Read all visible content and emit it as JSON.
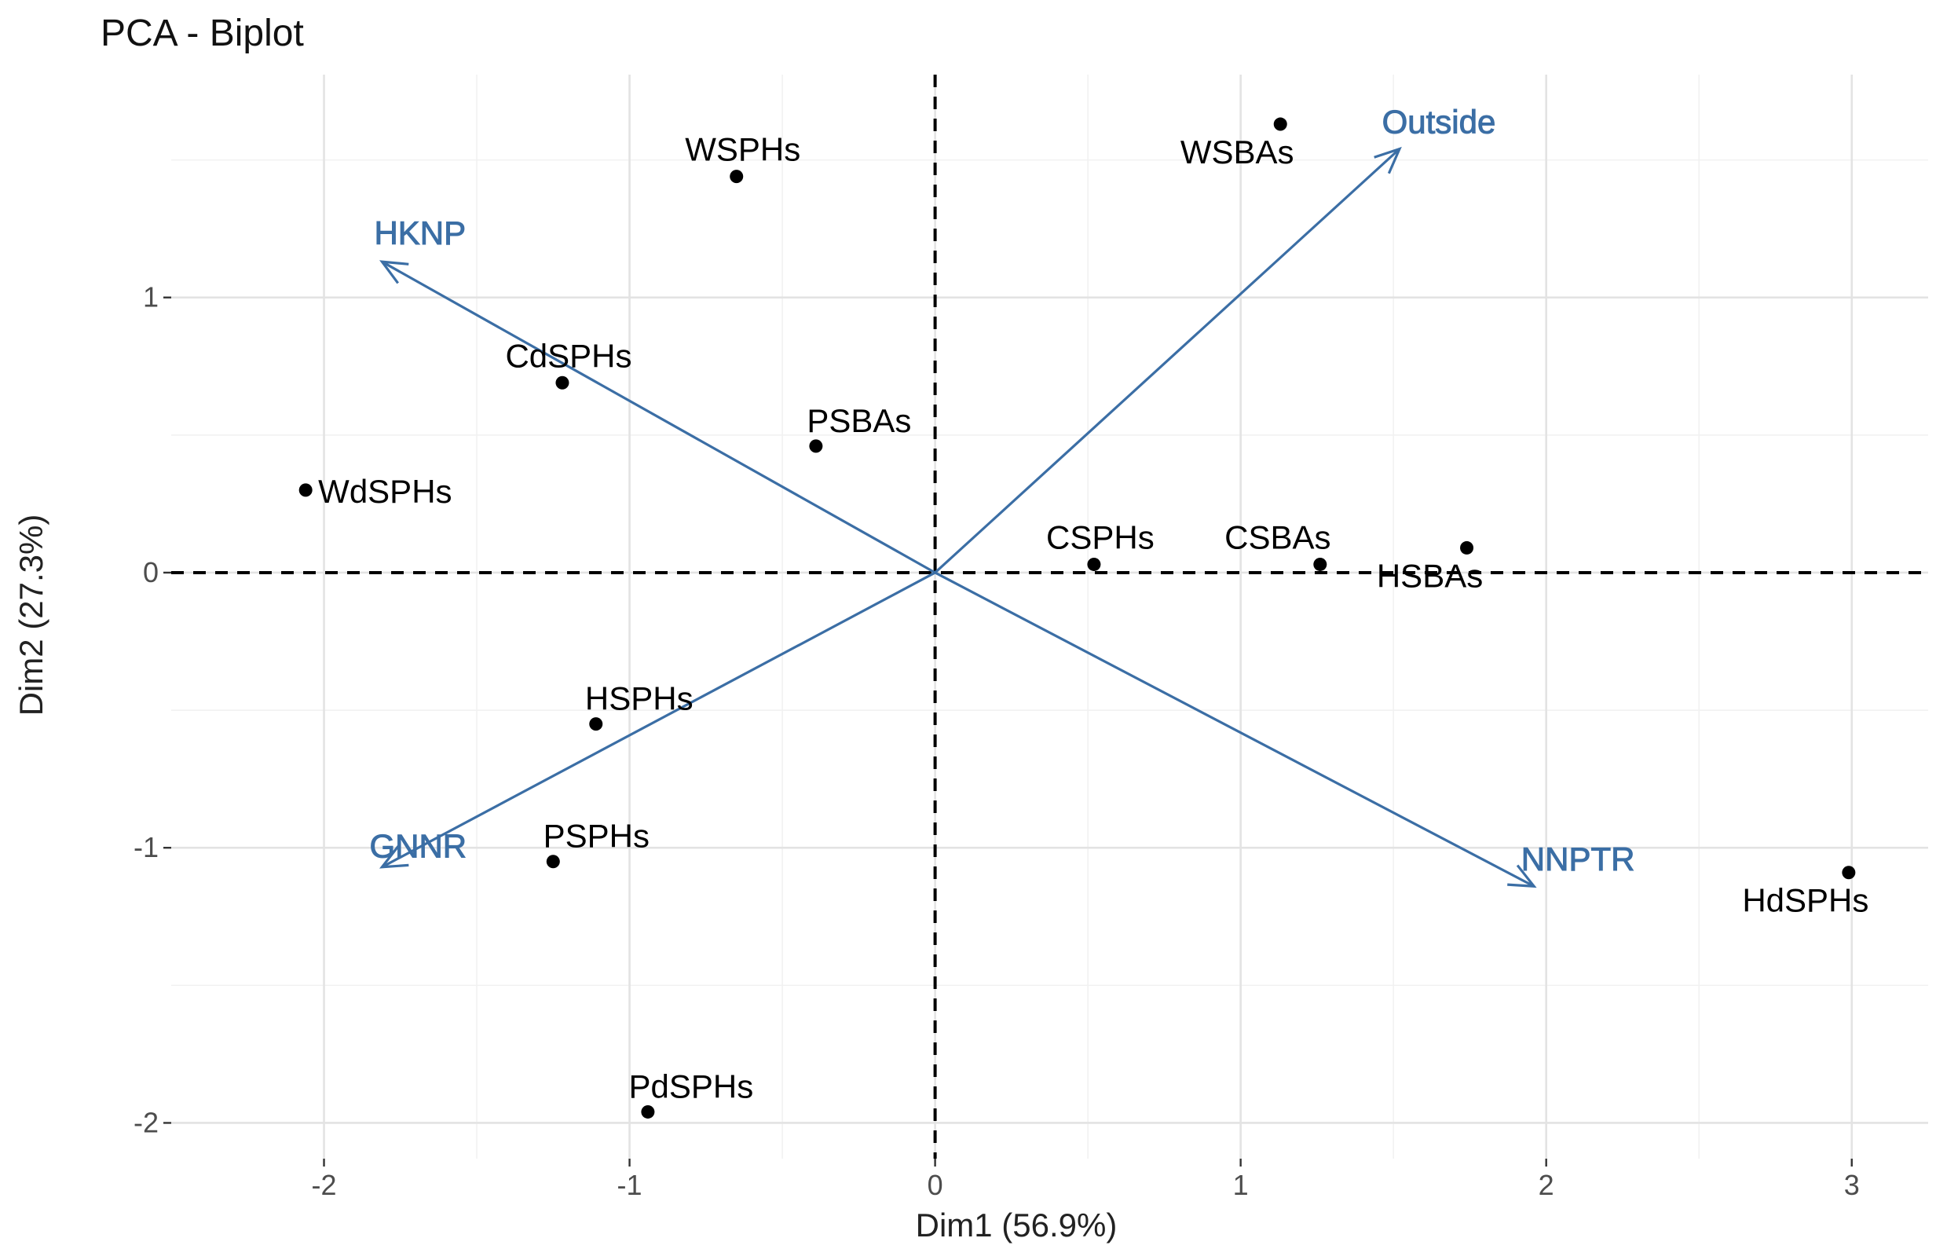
{
  "chart_data": {
    "type": "scatter",
    "title": "PCA - Biplot",
    "xlabel": "Dim1 (56.9%)",
    "ylabel": "Dim2 (27.3%)",
    "xlim": [
      -2.5,
      3.25
    ],
    "ylim": [
      -2.13,
      1.81
    ],
    "x_ticks": [
      -2,
      -1,
      0,
      1,
      2,
      3
    ],
    "y_ticks": [
      -2,
      -1,
      0,
      1
    ],
    "x_tick_labels": [
      "-2",
      "-1",
      "0",
      "1",
      "2",
      "3"
    ],
    "y_tick_labels": [
      "-2",
      "-1",
      "0",
      "1"
    ],
    "grid": true,
    "reference_lines": {
      "x": 0,
      "y": 0,
      "style": "dashed"
    },
    "points_color": "#000000",
    "arrow_color": "#3b6ea5",
    "points": [
      {
        "label": "WSPHs",
        "x": -0.65,
        "y": 1.44,
        "label_pos": "top"
      },
      {
        "label": "WSBAs",
        "x": 1.13,
        "y": 1.63,
        "label_pos": "bottom-left"
      },
      {
        "label": "CdSPHs",
        "x": -1.22,
        "y": 0.69,
        "label_pos": "top"
      },
      {
        "label": "PSBAs",
        "x": -0.39,
        "y": 0.46,
        "label_pos": "top-right"
      },
      {
        "label": "WdSPHs",
        "x": -2.06,
        "y": 0.3,
        "label_pos": "right"
      },
      {
        "label": "CSPHs",
        "x": 0.52,
        "y": 0.03,
        "label_pos": "top"
      },
      {
        "label": "CSBAs",
        "x": 1.26,
        "y": 0.03,
        "label_pos": "top-left"
      },
      {
        "label": "HSBAs",
        "x": 1.74,
        "y": 0.09,
        "label_pos": "bottom-left"
      },
      {
        "label": "HSPHs",
        "x": -1.11,
        "y": -0.55,
        "label_pos": "top-right"
      },
      {
        "label": "PSPHs",
        "x": -1.25,
        "y": -1.05,
        "label_pos": "top-right"
      },
      {
        "label": "HdSPHs",
        "x": 2.99,
        "y": -1.09,
        "label_pos": "bottom-left"
      },
      {
        "label": "PdSPHs",
        "x": -0.94,
        "y": -1.96,
        "label_pos": "top-right"
      }
    ],
    "arrows": [
      {
        "label": "HKNP",
        "x": -1.81,
        "y": 1.13
      },
      {
        "label": "Outside",
        "x": 1.52,
        "y": 1.54
      },
      {
        "label": "GNNR",
        "x": -1.81,
        "y": -1.07
      },
      {
        "label": "NNPTR",
        "x": 1.96,
        "y": -1.14
      }
    ]
  }
}
